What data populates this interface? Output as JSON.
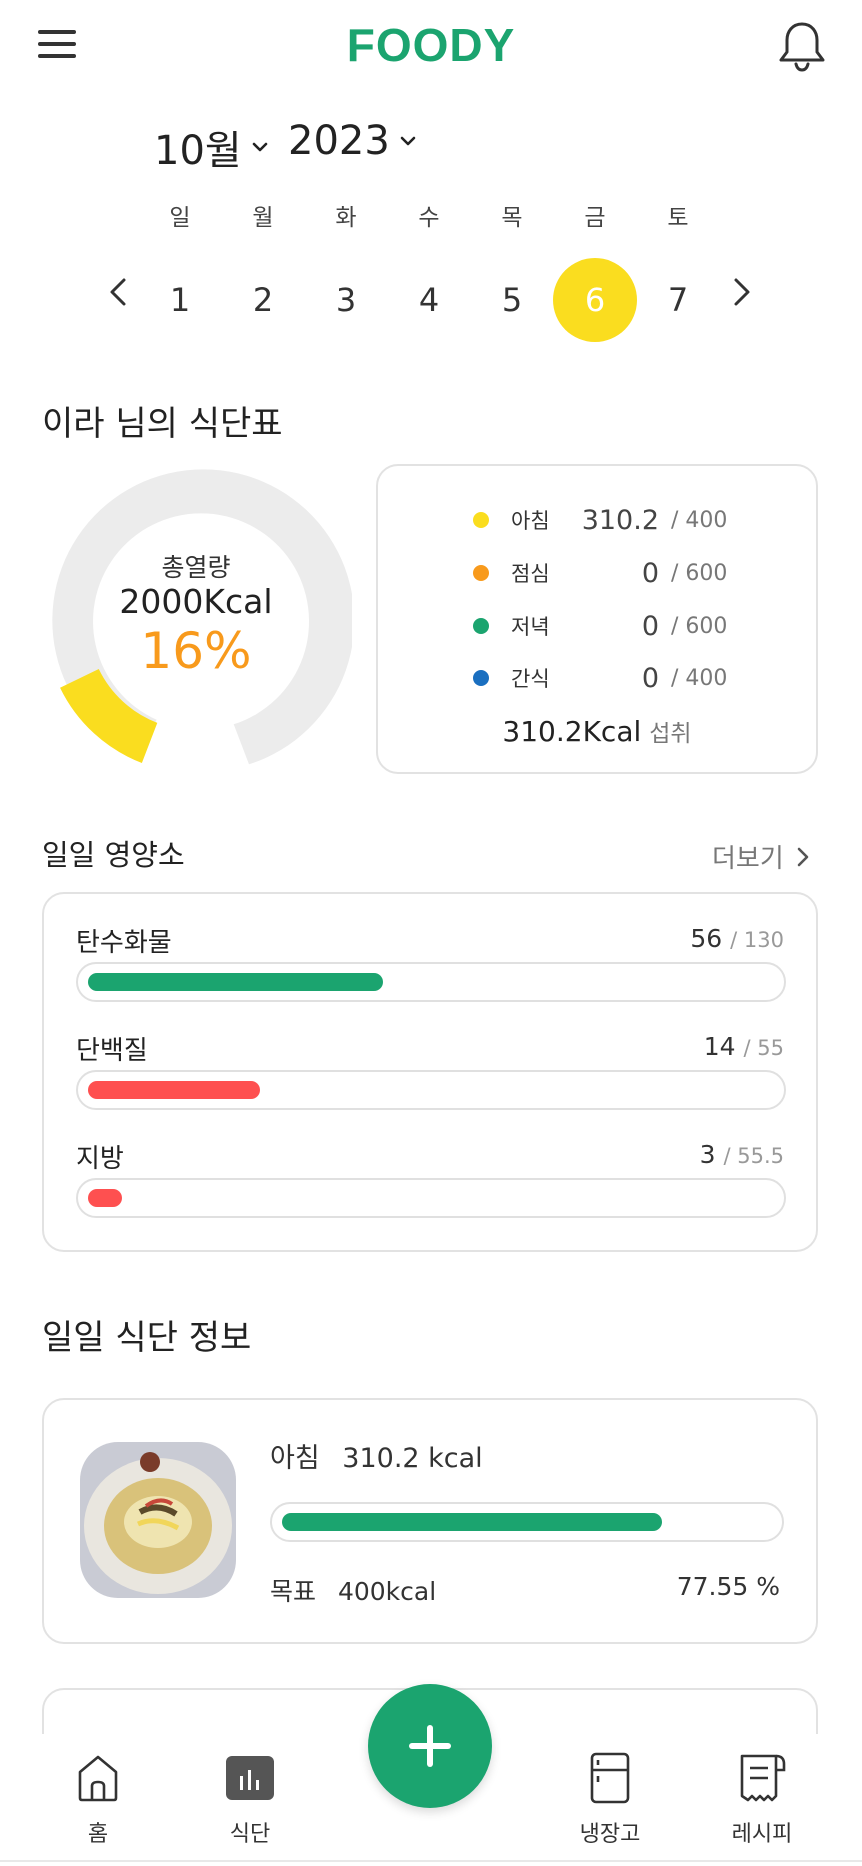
{
  "header": {
    "brand": "FOODY"
  },
  "date_selector": {
    "month_label": "10월",
    "year_label": "2023",
    "weekdays": [
      "일",
      "월",
      "화",
      "수",
      "목",
      "금",
      "토"
    ],
    "days": [
      "1",
      "2",
      "3",
      "4",
      "5",
      "6",
      "7"
    ],
    "selected_day": "6"
  },
  "meal_plan": {
    "title": "이라 님의 식단표",
    "total_label": "총열량",
    "total_kcal": "2000Kcal",
    "percent": "16%",
    "progress_fraction": 0.16,
    "meals": [
      {
        "name": "아침",
        "value": "310.2",
        "goal": "/ 400",
        "color": "#fadd1f"
      },
      {
        "name": "점심",
        "value": "0",
        "goal": "/ 600",
        "color": "#f89a1c"
      },
      {
        "name": "저녁",
        "value": "0",
        "goal": "/ 600",
        "color": "#1ba46f"
      },
      {
        "name": "간식",
        "value": "0",
        "goal": "/ 400",
        "color": "#1a6fc0"
      }
    ],
    "intake_value": "310.2Kcal",
    "intake_suffix": "섭취"
  },
  "nutrients": {
    "title": "일일 영양소",
    "more_label": "더보기",
    "items": [
      {
        "name": "탄수화물",
        "value": "56",
        "goal": "/ 130",
        "fraction": 0.43,
        "color": "#1ba46f"
      },
      {
        "name": "단백질",
        "value": "14",
        "goal": "/ 55",
        "fraction": 0.25,
        "color": "#fe5050"
      },
      {
        "name": "지방",
        "value": "3",
        "goal": "/ 55.5",
        "fraction": 0.05,
        "color": "#fe5050"
      }
    ]
  },
  "daily_meals": {
    "title": "일일 식단 정보",
    "card": {
      "meal_name": "아침",
      "kcal": "310.2 kcal",
      "goal_label": "목표",
      "goal_value": "400kcal",
      "percent": "77.55 %",
      "fraction": 0.7755,
      "color": "#1ba46f"
    }
  },
  "bottom_nav": {
    "items": [
      {
        "label": "홈",
        "icon": "home-icon"
      },
      {
        "label": "식단",
        "icon": "chart-icon"
      },
      {
        "label": "냉장고",
        "icon": "fridge-icon"
      },
      {
        "label": "레시피",
        "icon": "recipe-icon"
      }
    ],
    "fab_icon": "plus-icon"
  }
}
